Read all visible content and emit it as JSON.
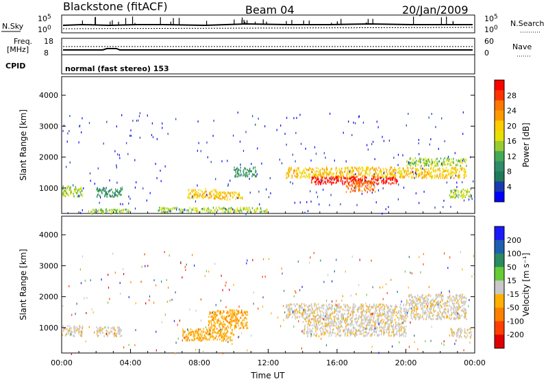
{
  "header": {
    "station": "Blackstone (fitACF)",
    "beam": "Beam 04",
    "date": "20/Jan/2009"
  },
  "status_panels": {
    "nsky_label": "N.Sky",
    "nsearch_label": "N.Search",
    "nsky_ticks": [
      "10^5",
      "10^0"
    ],
    "nsearch_ticks": [
      "10^5",
      "10^0"
    ],
    "freq_label_1": "Freq.",
    "freq_label_2": "[MHz]",
    "freq_ticks": [
      "18",
      "8"
    ],
    "nave_label": "Nave",
    "nave_ticks": [
      "60",
      "0"
    ],
    "cpid_label": "CPID",
    "cpid_text": "normal (fast stereo) 153"
  },
  "chart_data": [
    {
      "type": "heatmap",
      "name": "power",
      "ylabel": "Slant Range [km]",
      "xlabel": "",
      "ylim": [
        180,
        4600
      ],
      "yticks": [
        1000,
        2000,
        3000,
        4000
      ],
      "xlim": [
        0,
        24
      ],
      "colorbar_label": "Power [dB]",
      "colorbar_ticks": [
        "28",
        "24",
        "20",
        "16",
        "12",
        "8",
        "4"
      ],
      "colorbar_colors": [
        "#ff0000",
        "#ff3300",
        "#ff7700",
        "#ff9900",
        "#ffcc00",
        "#e8e000",
        "#99cc33",
        "#44aa55",
        "#2f8c6a",
        "#1f7a58",
        "#1a3ab0",
        "#0000ff"
      ],
      "regions": [
        {
          "t0": 0.0,
          "t1": 1.2,
          "r0": 750,
          "r1": 1100,
          "level": 2
        },
        {
          "t0": 2.0,
          "t1": 3.5,
          "r0": 750,
          "r1": 1050,
          "level": 1
        },
        {
          "t0": 1.5,
          "t1": 4.0,
          "r0": 200,
          "r1": 350,
          "level": 2
        },
        {
          "t0": 7.3,
          "t1": 9.0,
          "r0": 700,
          "r1": 1000,
          "level": 3
        },
        {
          "t0": 8.8,
          "t1": 10.5,
          "r0": 650,
          "r1": 900,
          "level": 3
        },
        {
          "t0": 10.0,
          "t1": 11.3,
          "r0": 1400,
          "r1": 1700,
          "level": 1
        },
        {
          "t0": 5.5,
          "t1": 12.0,
          "r0": 250,
          "r1": 400,
          "level": 2
        },
        {
          "t0": 13.0,
          "t1": 23.5,
          "r0": 1350,
          "r1": 1700,
          "level": 3
        },
        {
          "t0": 14.5,
          "t1": 19.5,
          "r0": 1150,
          "r1": 1400,
          "level": 5
        },
        {
          "t0": 16.5,
          "t1": 18.2,
          "r0": 900,
          "r1": 1250,
          "level": 4
        },
        {
          "t0": 20.0,
          "t1": 23.5,
          "r0": 1750,
          "r1": 2000,
          "level": 2
        },
        {
          "t0": 22.5,
          "t1": 23.8,
          "r0": 700,
          "r1": 1000,
          "level": 2
        }
      ]
    },
    {
      "type": "heatmap",
      "name": "velocity",
      "ylabel": "Slant Range [km]",
      "xlabel": "Time UT",
      "ylim": [
        180,
        4600
      ],
      "yticks": [
        1000,
        2000,
        3000,
        4000
      ],
      "xlim": [
        0,
        24
      ],
      "xticks": [
        "00:00",
        "04:00",
        "08:00",
        "12:00",
        "16:00",
        "20:00",
        "00:00"
      ],
      "colorbar_label": "Velocity [m s⁻¹]",
      "colorbar_ticks": [
        "200",
        "100",
        "50",
        "15",
        "-15",
        "-50",
        "-100",
        "-200"
      ],
      "colorbar_colors": [
        "#1a1aff",
        "#1f5fb0",
        "#2a8a60",
        "#66cc33",
        "#c8c8c8",
        "#ffb000",
        "#ff8000",
        "#ff4000",
        "#e00000"
      ],
      "regions": [
        {
          "t0": 0.0,
          "t1": 1.2,
          "r0": 750,
          "r1": 1100,
          "level": 4
        },
        {
          "t0": 2.0,
          "t1": 3.5,
          "r0": 750,
          "r1": 1050,
          "level": 4
        },
        {
          "t0": 7.0,
          "t1": 10.0,
          "r0": 600,
          "r1": 1000,
          "level": 5
        },
        {
          "t0": 8.5,
          "t1": 10.8,
          "r0": 1000,
          "r1": 1600,
          "level": 5
        },
        {
          "t0": 13.0,
          "t1": 23.5,
          "r0": 1300,
          "r1": 1800,
          "level": 4
        },
        {
          "t0": 14.0,
          "t1": 20.0,
          "r0": 750,
          "r1": 1300,
          "level": 4
        },
        {
          "t0": 20.0,
          "t1": 23.5,
          "r0": 1800,
          "r1": 2100,
          "level": 4
        },
        {
          "t0": 22.5,
          "t1": 23.8,
          "r0": 700,
          "r1": 1000,
          "level": 4
        }
      ]
    }
  ]
}
